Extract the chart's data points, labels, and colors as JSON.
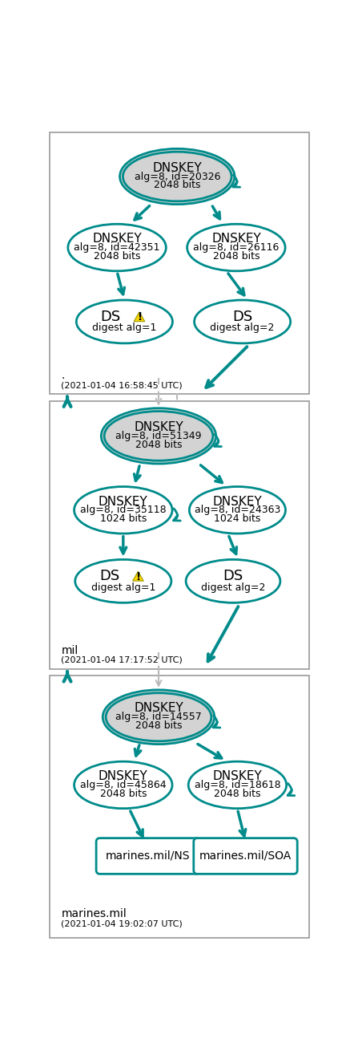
{
  "teal": "#008B8B",
  "gray_fill": "#D3D3D3",
  "white_fill": "#FFFFFF",
  "bg": "#FFFFFF",
  "panel1": {
    "label": ".",
    "timestamp": "(2021-01-04 16:58:45 UTC)",
    "ksk_id": "20326",
    "ksk_bits": "2048",
    "zsk1_id": "42351",
    "zsk1_bits": "2048",
    "zsk2_id": "26116",
    "zsk2_bits": "2048",
    "ds1_alg": "1",
    "ds2_alg": "2"
  },
  "panel2": {
    "label": "mil",
    "timestamp": "(2021-01-04 17:17:52 UTC)",
    "ksk_id": "51349",
    "ksk_bits": "2048",
    "zsk1_id": "35118",
    "zsk1_bits": "1024",
    "zsk2_id": "24363",
    "zsk2_bits": "1024",
    "ds1_alg": "1",
    "ds2_alg": "2"
  },
  "panel3": {
    "label": "marines.mil",
    "timestamp": "(2021-01-04 19:02:07 UTC)",
    "ksk_id": "14557",
    "ksk_bits": "2048",
    "zsk1_id": "45864",
    "zsk1_bits": "2048",
    "zsk2_id": "18618",
    "zsk2_bits": "2048",
    "ns": "marines.mil/NS",
    "soa": "marines.mil/SOA"
  },
  "fig_w": 4.37,
  "fig_h": 13.2,
  "dpi": 100
}
